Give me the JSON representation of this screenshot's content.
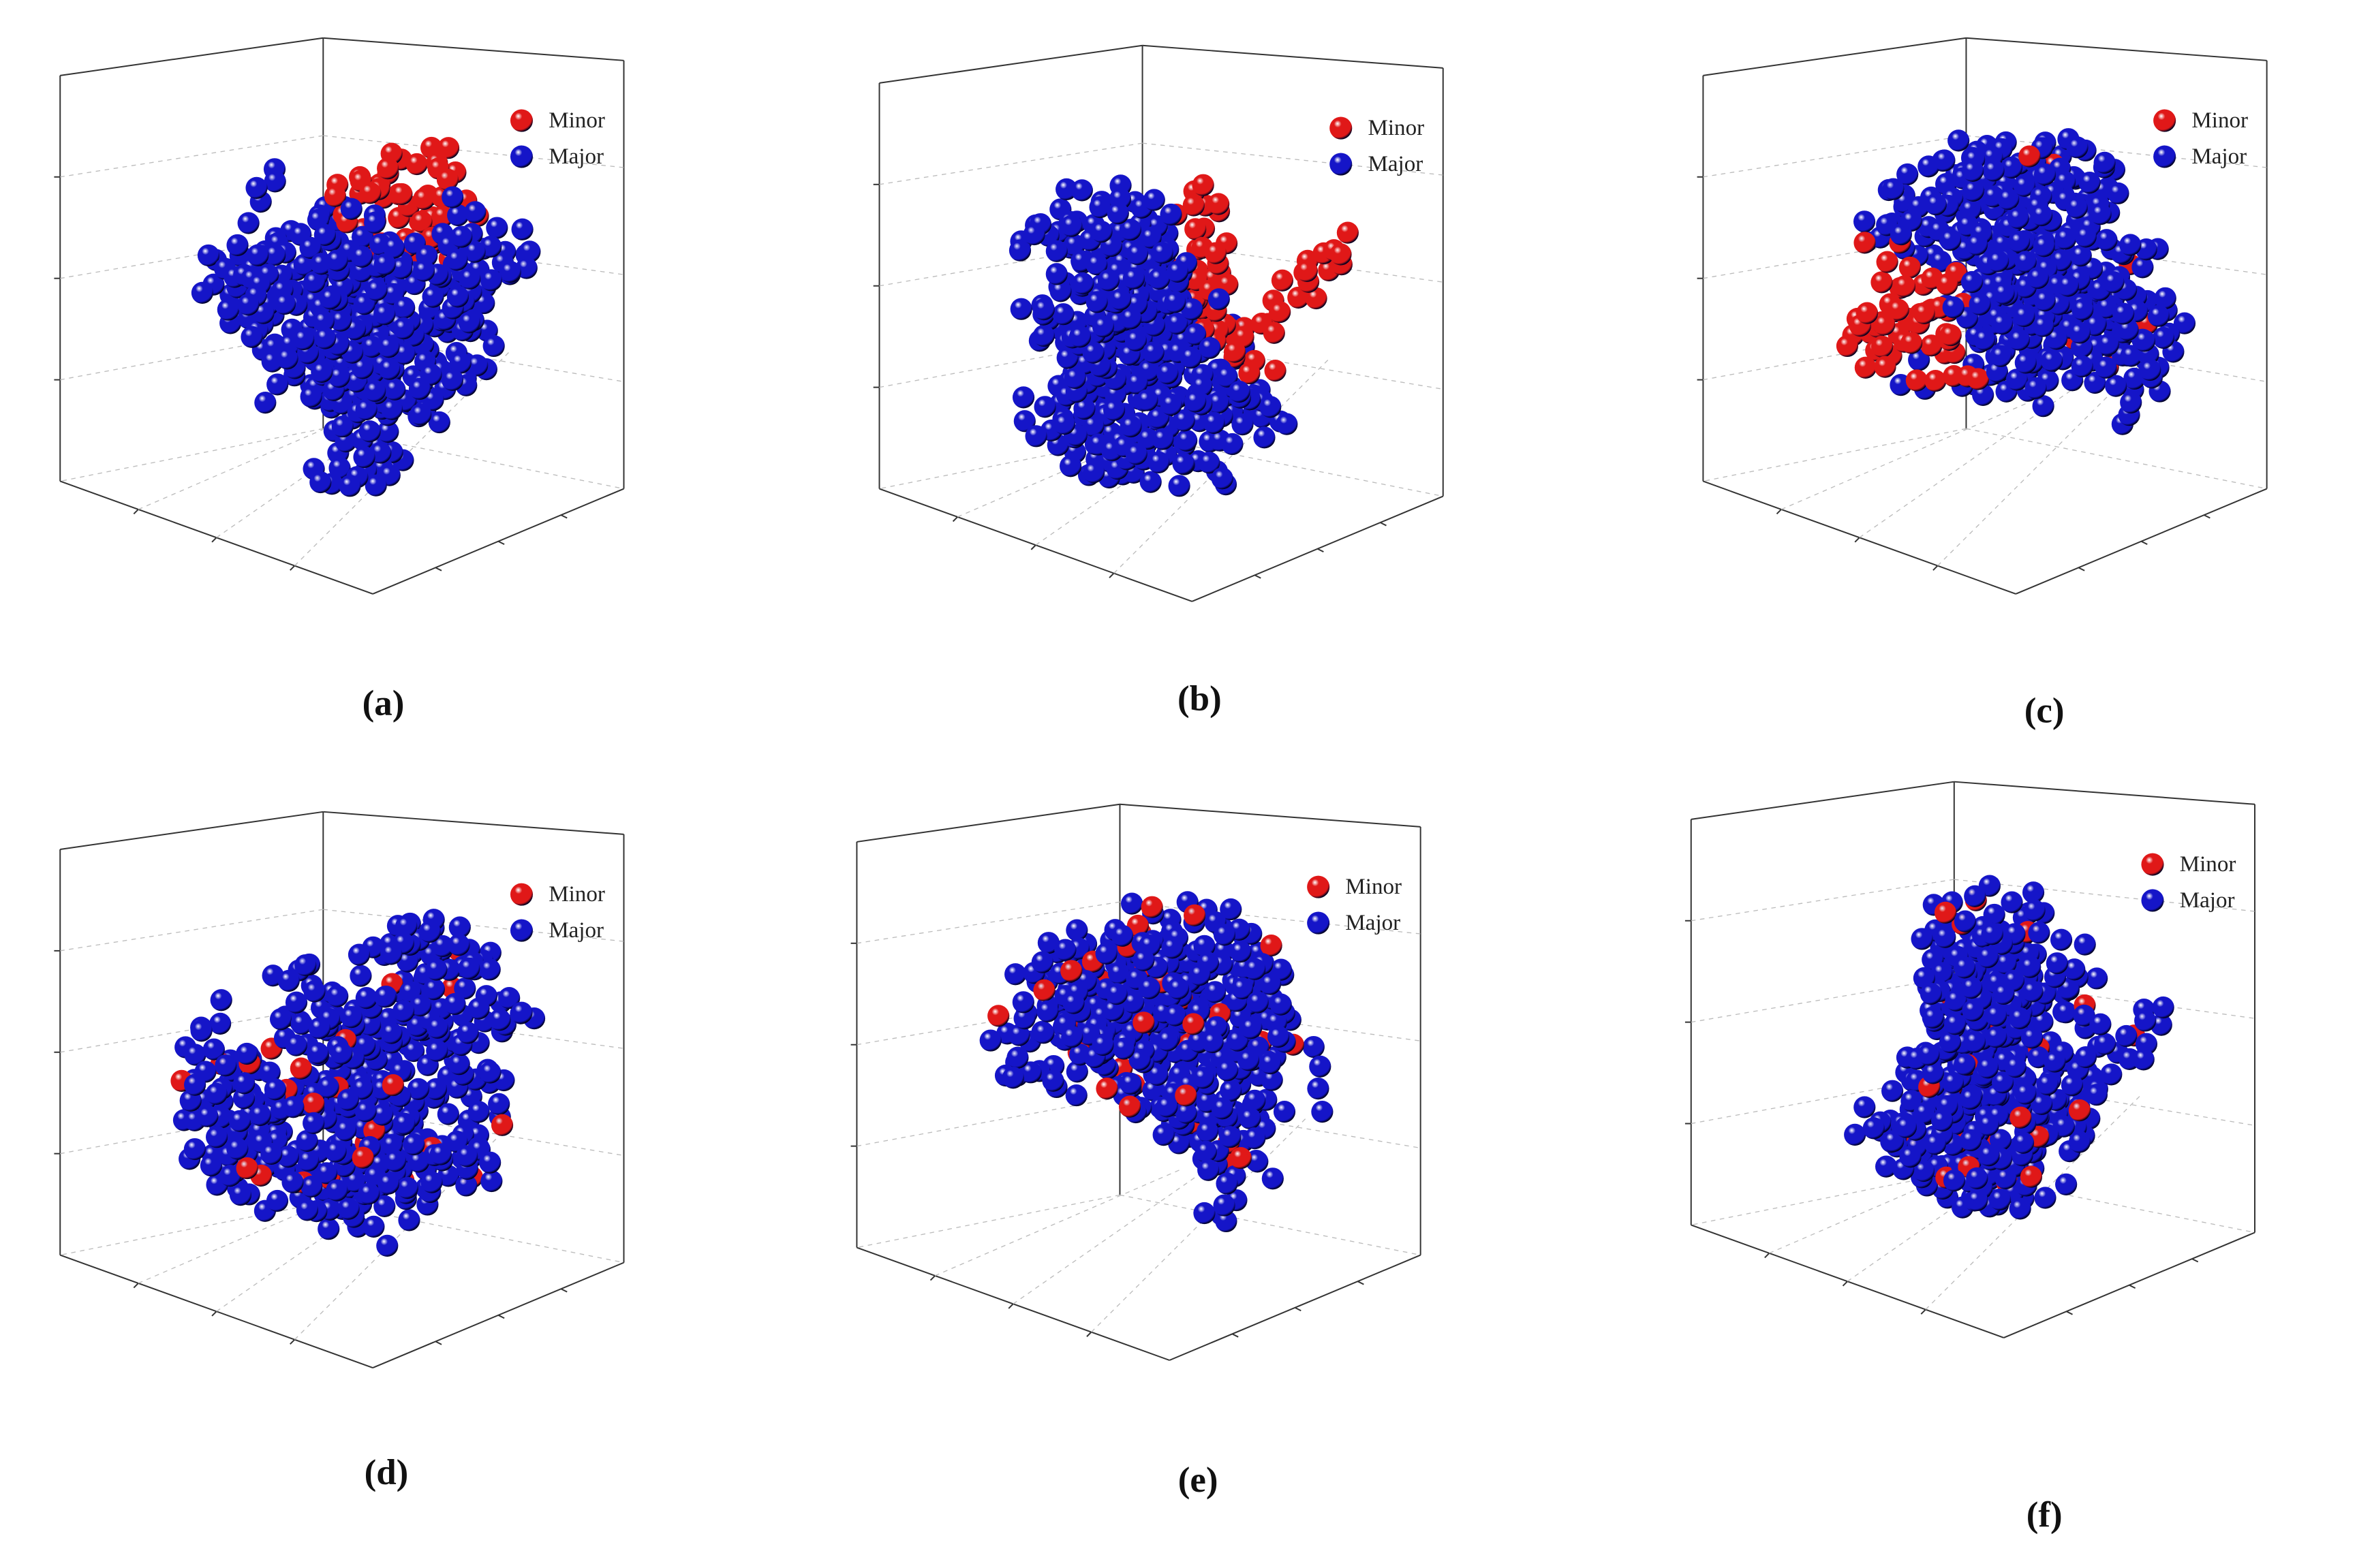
{
  "panels": [
    {
      "label": "(a)",
      "legend": [
        {
          "name": "Minor",
          "color": "#e01818"
        },
        {
          "name": "Major",
          "color": "#1515c8"
        }
      ]
    },
    {
      "label": "(b)",
      "legend": [
        {
          "name": "Minor",
          "color": "#e01818"
        },
        {
          "name": "Major",
          "color": "#1515c8"
        }
      ]
    },
    {
      "label": "(c)",
      "legend": [
        {
          "name": "Minor",
          "color": "#e01818"
        },
        {
          "name": "Major",
          "color": "#1515c8"
        }
      ]
    },
    {
      "label": "(d)",
      "legend": [
        {
          "name": "Minor",
          "color": "#e01818"
        },
        {
          "name": "Major",
          "color": "#1515c8"
        }
      ]
    },
    {
      "label": "(e)",
      "legend": [
        {
          "name": "Minor",
          "color": "#e01818"
        },
        {
          "name": "Major",
          "color": "#1515c8"
        }
      ]
    },
    {
      "label": "(f)",
      "legend": [
        {
          "name": "Minor",
          "color": "#e01818"
        },
        {
          "name": "Major",
          "color": "#1515c8"
        }
      ]
    }
  ]
}
